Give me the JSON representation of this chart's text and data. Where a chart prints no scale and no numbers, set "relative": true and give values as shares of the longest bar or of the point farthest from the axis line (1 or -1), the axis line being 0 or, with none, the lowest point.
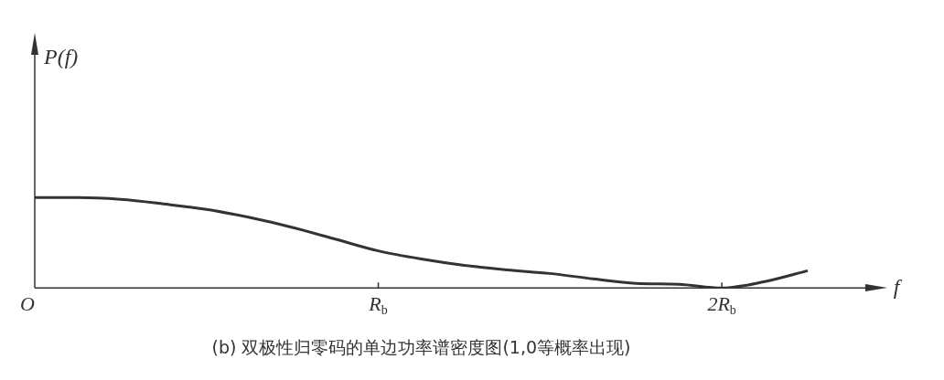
{
  "chart_data": {
    "type": "line",
    "relative": true,
    "title": "(b) 双极性归零码的单边功率谱密度图(1,0等概率出现)",
    "annotations": [
      "P(f)"
    ],
    "xlabel": "f",
    "categories": [
      "O",
      null,
      null,
      null,
      null,
      null,
      null,
      null,
      "R$_{b}$",
      null,
      null,
      null,
      null,
      null,
      null,
      null,
      "2R$_{b}$",
      null,
      null
    ],
    "series": [
      {
        "color": "#333333",
        "values": [
          1,
          1,
          0.98,
          0.93,
          0.87,
          0.78,
          0.67,
          0.54,
          0.41,
          0.32,
          0.25,
          0.2,
          0.16,
          0.1,
          0.05,
          0.04,
          0,
          0.07,
          0.19
        ]
      }
    ],
    "grid": false,
    "legend": false,
    "marker": "none",
    "line_style": "solid"
  }
}
